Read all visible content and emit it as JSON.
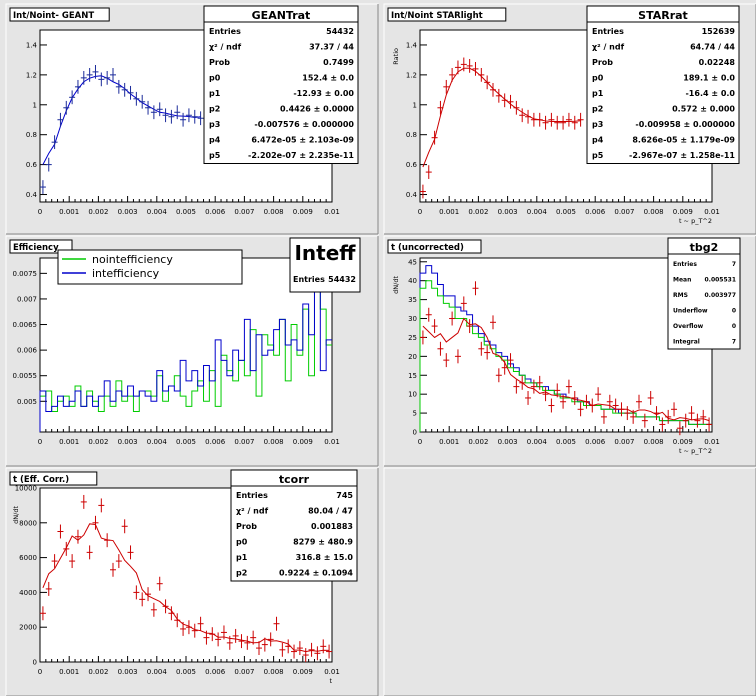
{
  "chart_data": [
    {
      "id": "geant",
      "type": "scatter",
      "title": "Int/Noint- GEANT",
      "xlim": [
        0,
        0.01
      ],
      "ylim": [
        0.35,
        1.5
      ],
      "xticks": [
        "0",
        "0.001",
        "0.002",
        "0.003",
        "0.004",
        "0.005",
        "0.006",
        "0.007",
        "0.008",
        "0.009",
        "0.01"
      ],
      "yticks": [
        [
          0.4,
          "0.4"
        ],
        [
          0.6,
          "0.6"
        ],
        [
          0.8,
          "0.8"
        ],
        [
          1,
          "1"
        ],
        [
          1.2,
          "1.2"
        ],
        [
          1.4,
          "1.4"
        ]
      ],
      "xlabel": "",
      "ylabel": "",
      "stats_title": "GEANTrat",
      "stats": [
        [
          "Entries",
          "54432"
        ],
        [
          "χ² / ndf",
          "37.37 / 44"
        ],
        [
          "Prob",
          "0.7499"
        ],
        [
          "p0",
          "152.4 ± 0.0"
        ],
        [
          "p1",
          "-12.93 ± 0.00"
        ],
        [
          "p2",
          "0.4426 ± 0.0000"
        ],
        [
          "p3",
          "-0.007576 ± 0.000000"
        ],
        [
          "p4",
          "6.472e-05 ± 2.103e-09"
        ],
        [
          "p5",
          "-2.202e-07 ± 2.235e-11"
        ]
      ],
      "points": [
        [
          0.0001,
          0.45
        ],
        [
          0.0003,
          0.6
        ],
        [
          0.0005,
          0.75
        ],
        [
          0.0007,
          0.9
        ],
        [
          0.0009,
          0.98
        ],
        [
          0.0011,
          1.05
        ],
        [
          0.0013,
          1.12
        ],
        [
          0.0015,
          1.18
        ],
        [
          0.0017,
          1.2
        ],
        [
          0.0019,
          1.22
        ],
        [
          0.0021,
          1.17
        ],
        [
          0.0023,
          1.18
        ],
        [
          0.0025,
          1.2
        ],
        [
          0.0027,
          1.12
        ],
        [
          0.0029,
          1.1
        ],
        [
          0.0031,
          1.08
        ],
        [
          0.0033,
          1.04
        ],
        [
          0.0035,
          1.02
        ],
        [
          0.0037,
          0.98
        ],
        [
          0.0039,
          0.95
        ],
        [
          0.0041,
          0.97
        ],
        [
          0.0043,
          0.93
        ],
        [
          0.0045,
          0.92
        ],
        [
          0.0047,
          0.95
        ],
        [
          0.0049,
          0.9
        ],
        [
          0.0051,
          0.93
        ],
        [
          0.0053,
          0.92
        ],
        [
          0.0055,
          0.91
        ]
      ],
      "fit_color": "#0000cc",
      "marker_color": "#1a2a9a"
    },
    {
      "id": "starlight",
      "type": "scatter",
      "title": "Int/Noint STARlight",
      "xlim": [
        0,
        0.01
      ],
      "ylim": [
        0.35,
        1.5
      ],
      "xticks": [
        "0",
        "0.001",
        "0.002",
        "0.003",
        "0.004",
        "0.005",
        "0.006",
        "0.007",
        "0.008",
        "0.009",
        "0.01"
      ],
      "yticks": [
        [
          0.4,
          "0.4"
        ],
        [
          0.6,
          "0.6"
        ],
        [
          0.8,
          "0.8"
        ],
        [
          1,
          "1"
        ],
        [
          1.2,
          "1.2"
        ],
        [
          1.4,
          "1.4"
        ]
      ],
      "xlabel": "t ~ p_T^2",
      "ylabel": "Ratio",
      "stats_title": "STARrat",
      "stats": [
        [
          "Entries",
          "152639"
        ],
        [
          "χ² / ndf",
          "64.74 / 44"
        ],
        [
          "Prob",
          "0.02248"
        ],
        [
          "p0",
          "189.1 ± 0.0"
        ],
        [
          "p1",
          "-16.4 ± 0.0"
        ],
        [
          "p2",
          "0.572 ± 0.000"
        ],
        [
          "p3",
          "-0.009958 ± 0.000000"
        ],
        [
          "p4",
          "8.626e-05 ± 1.179e-09"
        ],
        [
          "p5",
          "-2.967e-07 ± 1.258e-11"
        ]
      ],
      "points": [
        [
          0.0001,
          0.42
        ],
        [
          0.0003,
          0.55
        ],
        [
          0.0005,
          0.78
        ],
        [
          0.0007,
          0.98
        ],
        [
          0.0009,
          1.12
        ],
        [
          0.0011,
          1.2
        ],
        [
          0.0013,
          1.25
        ],
        [
          0.0015,
          1.27
        ],
        [
          0.0017,
          1.26
        ],
        [
          0.0019,
          1.24
        ],
        [
          0.0021,
          1.2
        ],
        [
          0.0023,
          1.15
        ],
        [
          0.0025,
          1.1
        ],
        [
          0.0027,
          1.06
        ],
        [
          0.0029,
          1.03
        ],
        [
          0.0031,
          1.02
        ],
        [
          0.0033,
          0.98
        ],
        [
          0.0035,
          0.93
        ],
        [
          0.0037,
          0.92
        ],
        [
          0.0039,
          0.9
        ],
        [
          0.0041,
          0.9
        ],
        [
          0.0043,
          0.88
        ],
        [
          0.0045,
          0.9
        ],
        [
          0.0047,
          0.88
        ],
        [
          0.0049,
          0.88
        ],
        [
          0.0051,
          0.9
        ],
        [
          0.0053,
          0.88
        ],
        [
          0.0055,
          0.9
        ]
      ],
      "fit_color": "#cc0000",
      "marker_color": "#cc0000"
    },
    {
      "id": "efficiency",
      "type": "line",
      "title": "Efficiency",
      "xlim": [
        0,
        0.01
      ],
      "ylim": [
        0.0044,
        0.0078
      ],
      "xticks": [
        "0",
        "0.001",
        "0.002",
        "0.003",
        "0.004",
        "0.005",
        "0.006",
        "0.007",
        "0.008",
        "0.009",
        "0.01"
      ],
      "yticks": [
        [
          0.005,
          "0.005"
        ],
        [
          0.0055,
          "0.0055"
        ],
        [
          0.006,
          "0.006"
        ],
        [
          0.0065,
          "0.0065"
        ],
        [
          0.007,
          "0.007"
        ],
        [
          0.0075,
          "0.0075"
        ]
      ],
      "stats_title": "Inteff",
      "stats": [
        [
          "Entries",
          "54432"
        ]
      ],
      "legend": [
        "nointefficiency",
        "intefficiency"
      ],
      "series": [
        {
          "name": "nointefficiency",
          "color": "#00cc00",
          "values": [
            0.0051,
            0.0052,
            0.0048,
            0.005,
            0.0051,
            0.0049,
            0.0053,
            0.0049,
            0.0052,
            0.005,
            0.0048,
            0.0051,
            0.0049,
            0.0054,
            0.005,
            0.0051,
            0.0048,
            0.0052,
            0.0052,
            0.0051,
            0.0055,
            0.005,
            0.0053,
            0.0055,
            0.0051,
            0.0049,
            0.0052,
            0.0054,
            0.005,
            0.0056,
            0.0049,
            0.0059,
            0.0056,
            0.0054,
            0.0058,
            0.0055,
            0.0064,
            0.0051,
            0.0063,
            0.0061,
            0.0059,
            0.0066,
            0.0054,
            0.0065,
            0.0059,
            0.0068,
            0.0055,
            0.0072,
            0.0068,
            0.0061
          ]
        },
        {
          "name": "intefficiency",
          "color": "#0000cc",
          "values": [
            0.0052,
            0.0048,
            0.0049,
            0.0051,
            0.0049,
            0.005,
            0.0052,
            0.0049,
            0.0051,
            0.0049,
            0.0051,
            0.0054,
            0.005,
            0.0052,
            0.0051,
            0.0053,
            0.0051,
            0.0052,
            0.0051,
            0.005,
            0.0056,
            0.0052,
            0.0053,
            0.0052,
            0.0058,
            0.0054,
            0.0056,
            0.0053,
            0.0057,
            0.0054,
            0.0062,
            0.0058,
            0.0055,
            0.006,
            0.0058,
            0.0066,
            0.0056,
            0.0063,
            0.0059,
            0.006,
            0.0064,
            0.0066,
            0.0061,
            0.0062,
            0.006,
            0.0069,
            0.0063,
            0.0072,
            0.0056,
            0.0062
          ]
        }
      ]
    },
    {
      "id": "tuncorr",
      "type": "line",
      "title": "t (uncorrected)",
      "xlim": [
        0,
        0.01
      ],
      "ylim": [
        0,
        46
      ],
      "xticks": [
        "0",
        "0.001",
        "0.002",
        "0.003",
        "0.004",
        "0.005",
        "0.006",
        "0.007",
        "0.008",
        "0.009",
        "0.01"
      ],
      "yticks": [
        [
          0,
          "0"
        ],
        [
          5,
          "5"
        ],
        [
          10,
          "10"
        ],
        [
          15,
          "15"
        ],
        [
          20,
          "20"
        ],
        [
          25,
          "25"
        ],
        [
          30,
          "30"
        ],
        [
          35,
          "35"
        ],
        [
          40,
          "40"
        ],
        [
          45,
          "45"
        ]
      ],
      "xlabel": "t ~ p_T^2",
      "ylabel": "dN/dt",
      "stats_title": "tbg2",
      "stats": [
        [
          "Entries",
          "7"
        ],
        [
          "Mean",
          "0.005531"
        ],
        [
          "RMS",
          "0.003977"
        ],
        [
          "Underflow",
          "0"
        ],
        [
          "Overflow",
          "0"
        ],
        [
          "Integral",
          "7"
        ]
      ],
      "series": [
        {
          "name": "",
          "color": "#0000cc",
          "values": [
            42,
            44,
            42,
            39,
            36,
            36,
            33,
            32,
            31,
            28,
            26,
            24,
            23,
            21,
            20,
            18,
            17,
            15,
            14,
            13,
            12,
            12,
            11,
            10,
            10,
            9,
            9,
            8,
            8,
            7,
            7,
            6,
            6,
            6,
            5,
            5,
            5,
            4,
            4,
            4,
            4,
            3,
            3,
            3,
            3,
            3,
            2,
            2,
            2,
            2
          ]
        },
        {
          "name": "",
          "color": "#00cc00",
          "values": [
            38,
            40,
            38,
            36,
            34,
            33,
            30,
            30,
            28,
            26,
            25,
            23,
            22,
            20,
            19,
            17,
            16,
            15,
            13,
            13,
            12,
            11,
            11,
            10,
            9,
            9,
            8,
            8,
            7,
            7,
            7,
            6,
            6,
            5,
            5,
            5,
            5,
            4,
            4,
            4,
            4,
            3,
            3,
            3,
            3,
            3,
            2,
            2,
            2,
            2
          ]
        }
      ],
      "points": [
        [
          0.0001,
          25
        ],
        [
          0.0003,
          31
        ],
        [
          0.0005,
          28
        ],
        [
          0.0007,
          22
        ],
        [
          0.0009,
          19
        ],
        [
          0.0011,
          30
        ],
        [
          0.0013,
          20
        ],
        [
          0.0015,
          34
        ],
        [
          0.0017,
          28
        ],
        [
          0.0019,
          38
        ],
        [
          0.0021,
          22
        ],
        [
          0.0023,
          21
        ],
        [
          0.0025,
          29
        ],
        [
          0.0027,
          15
        ],
        [
          0.0029,
          17
        ],
        [
          0.0031,
          19
        ],
        [
          0.0033,
          12
        ],
        [
          0.0035,
          13
        ],
        [
          0.0037,
          9
        ],
        [
          0.0039,
          12
        ],
        [
          0.0041,
          13
        ],
        [
          0.0043,
          10
        ],
        [
          0.0045,
          7
        ],
        [
          0.0047,
          11
        ],
        [
          0.0049,
          8
        ],
        [
          0.0051,
          12
        ],
        [
          0.0053,
          9
        ],
        [
          0.0055,
          6
        ],
        [
          0.0057,
          8
        ],
        [
          0.0059,
          7
        ],
        [
          0.0061,
          10
        ],
        [
          0.0063,
          4
        ],
        [
          0.0065,
          8
        ],
        [
          0.0067,
          7
        ],
        [
          0.0069,
          6
        ],
        [
          0.0071,
          5
        ],
        [
          0.0073,
          4
        ],
        [
          0.0075,
          8
        ],
        [
          0.0077,
          3
        ],
        [
          0.0079,
          9
        ],
        [
          0.0081,
          5
        ],
        [
          0.0083,
          2
        ],
        [
          0.0085,
          4
        ],
        [
          0.0087,
          6
        ],
        [
          0.0089,
          1
        ],
        [
          0.0091,
          3
        ],
        [
          0.0093,
          5
        ],
        [
          0.0095,
          3
        ],
        [
          0.0097,
          4
        ],
        [
          0.0099,
          2
        ]
      ],
      "fit_color": "#cc0000",
      "marker_color": "#cc0000"
    },
    {
      "id": "tcorr",
      "type": "scatter",
      "title": "t (Eff. Corr.)",
      "xlim": [
        0,
        0.01
      ],
      "ylim": [
        0,
        10000
      ],
      "xticks": [
        "0",
        "0.001",
        "0.002",
        "0.003",
        "0.004",
        "0.005",
        "0.006",
        "0.007",
        "0.008",
        "0.009",
        "0.01"
      ],
      "yticks": [
        [
          0,
          "0"
        ],
        [
          2000,
          "2000"
        ],
        [
          4000,
          "4000"
        ],
        [
          6000,
          "6000"
        ],
        [
          8000,
          "8000"
        ],
        [
          10000,
          "10000"
        ]
      ],
      "xlabel": "t",
      "ylabel": "dN/dt",
      "stats_title": "tcorr",
      "stats": [
        [
          "Entries",
          "745"
        ],
        [
          "χ² / ndf",
          "80.04 / 47"
        ],
        [
          "Prob",
          "0.001883"
        ],
        [
          "p0",
          "8279 ± 480.9"
        ],
        [
          "p1",
          "316.8 ± 15.0"
        ],
        [
          "p2",
          "0.9224 ± 0.1094"
        ]
      ],
      "points": [
        [
          0.0001,
          2800
        ],
        [
          0.0003,
          4200
        ],
        [
          0.0005,
          5800
        ],
        [
          0.0007,
          7500
        ],
        [
          0.0009,
          6500
        ],
        [
          0.0011,
          5800
        ],
        [
          0.0013,
          7200
        ],
        [
          0.0015,
          9200
        ],
        [
          0.0017,
          6300
        ],
        [
          0.0019,
          8000
        ],
        [
          0.0021,
          9000
        ],
        [
          0.0023,
          7000
        ],
        [
          0.0025,
          5300
        ],
        [
          0.0027,
          5800
        ],
        [
          0.0029,
          7800
        ],
        [
          0.0031,
          6300
        ],
        [
          0.0033,
          4000
        ],
        [
          0.0035,
          3600
        ],
        [
          0.0037,
          3900
        ],
        [
          0.0039,
          3000
        ],
        [
          0.0041,
          4500
        ],
        [
          0.0043,
          3200
        ],
        [
          0.0045,
          2800
        ],
        [
          0.0047,
          2400
        ],
        [
          0.0049,
          1900
        ],
        [
          0.0051,
          2000
        ],
        [
          0.0053,
          1800
        ],
        [
          0.0055,
          2200
        ],
        [
          0.0057,
          1400
        ],
        [
          0.0059,
          1600
        ],
        [
          0.0061,
          1300
        ],
        [
          0.0063,
          1700
        ],
        [
          0.0065,
          1100
        ],
        [
          0.0067,
          1500
        ],
        [
          0.0069,
          1200
        ],
        [
          0.0071,
          1100
        ],
        [
          0.0073,
          1400
        ],
        [
          0.0075,
          800
        ],
        [
          0.0077,
          1000
        ],
        [
          0.0079,
          1300
        ],
        [
          0.0081,
          2200
        ],
        [
          0.0083,
          700
        ],
        [
          0.0085,
          900
        ],
        [
          0.0087,
          600
        ],
        [
          0.0089,
          800
        ],
        [
          0.0091,
          400
        ],
        [
          0.0093,
          700
        ],
        [
          0.0095,
          500
        ],
        [
          0.0097,
          900
        ],
        [
          0.0099,
          600
        ]
      ],
      "fit_color": "#cc0000",
      "marker_color": "#cc0000"
    }
  ]
}
